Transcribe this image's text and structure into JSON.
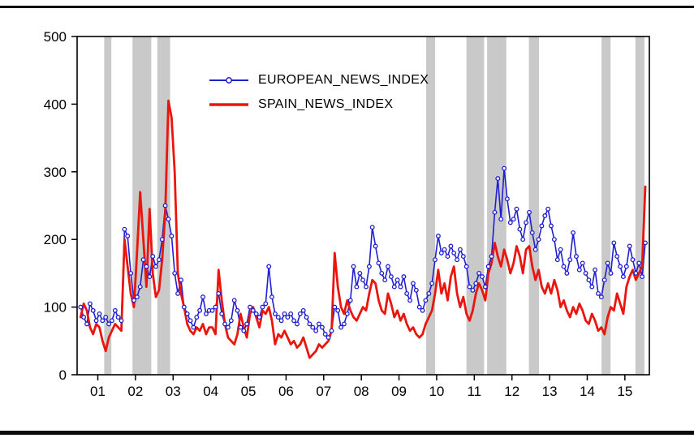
{
  "chart_data": {
    "type": "line",
    "title": "",
    "xlabel": "",
    "ylabel": "",
    "xlim": [
      2000.45,
      2015.65
    ],
    "ylim": [
      0,
      500
    ],
    "grid": false,
    "legend_position": "top-left-inside",
    "band_color": "#c9c9c9",
    "x_start": 2000.542,
    "x_step": 0.083333,
    "xticks": {
      "positions": [
        2001,
        2002,
        2003,
        2004,
        2005,
        2006,
        2007,
        2008,
        2009,
        2010,
        2011,
        2012,
        2013,
        2014,
        2015
      ],
      "labels": [
        "01",
        "02",
        "03",
        "04",
        "05",
        "06",
        "07",
        "08",
        "09",
        "10",
        "11",
        "12",
        "13",
        "14",
        "15"
      ]
    },
    "yticks": [
      0,
      100,
      200,
      300,
      400,
      500
    ],
    "shaded_bands": [
      [
        2001.17,
        2001.36
      ],
      [
        2001.92,
        2002.42
      ],
      [
        2002.58,
        2002.92
      ],
      [
        2009.72,
        2009.96
      ],
      [
        2010.79,
        2011.26
      ],
      [
        2011.34,
        2011.85
      ],
      [
        2012.45,
        2012.72
      ],
      [
        2014.38,
        2014.62
      ],
      [
        2015.28,
        2015.52
      ]
    ],
    "series": [
      {
        "name": "EUROPEAN_NEWS_INDEX",
        "color": "#1f1fd0",
        "line_width": 1.6,
        "marker": "open-circle",
        "values": [
          100,
          85,
          75,
          105,
          95,
          80,
          90,
          80,
          85,
          75,
          80,
          95,
          85,
          80,
          215,
          205,
          150,
          110,
          115,
          130,
          170,
          160,
          145,
          175,
          160,
          170,
          200,
          250,
          230,
          205,
          150,
          120,
          140,
          100,
          90,
          80,
          70,
          85,
          95,
          115,
          90,
          95,
          95,
          100,
          120,
          90,
          75,
          70,
          80,
          110,
          95,
          70,
          65,
          75,
          100,
          95,
          90,
          85,
          100,
          105,
          160,
          115,
          90,
          85,
          80,
          90,
          85,
          90,
          80,
          75,
          90,
          95,
          85,
          75,
          70,
          65,
          75,
          70,
          60,
          55,
          65,
          100,
          95,
          70,
          75,
          90,
          110,
          160,
          130,
          150,
          140,
          130,
          160,
          218,
          190,
          165,
          150,
          140,
          160,
          145,
          130,
          140,
          130,
          145,
          120,
          110,
          135,
          125,
          100,
          95,
          110,
          120,
          135,
          170,
          205,
          180,
          185,
          175,
          190,
          180,
          170,
          185,
          175,
          160,
          130,
          125,
          135,
          150,
          145,
          130,
          160,
          175,
          240,
          290,
          230,
          305,
          260,
          225,
          230,
          245,
          215,
          200,
          225,
          240,
          210,
          185,
          200,
          220,
          235,
          245,
          220,
          200,
          170,
          185,
          160,
          150,
          170,
          210,
          175,
          155,
          165,
          150,
          140,
          130,
          155,
          120,
          115,
          140,
          165,
          150,
          195,
          175,
          160,
          145,
          160,
          190,
          170,
          150,
          165,
          145,
          195
        ]
      },
      {
        "name": "SPAIN_NEWS_INDEX",
        "color": "#ec150d",
        "line_width": 2.8,
        "marker": "none",
        "values": [
          85,
          105,
          95,
          70,
          60,
          75,
          70,
          50,
          35,
          55,
          65,
          75,
          70,
          65,
          200,
          160,
          120,
          100,
          180,
          270,
          200,
          130,
          245,
          150,
          115,
          125,
          170,
          240,
          405,
          380,
          300,
          150,
          120,
          100,
          75,
          65,
          60,
          70,
          65,
          75,
          60,
          70,
          70,
          60,
          155,
          110,
          75,
          55,
          50,
          45,
          60,
          90,
          70,
          55,
          90,
          100,
          85,
          70,
          95,
          90,
          100,
          80,
          45,
          60,
          55,
          65,
          55,
          45,
          50,
          40,
          45,
          55,
          40,
          25,
          30,
          35,
          45,
          40,
          45,
          50,
          65,
          180,
          130,
          100,
          90,
          110,
          95,
          85,
          80,
          90,
          100,
          95,
          120,
          140,
          135,
          110,
          95,
          90,
          120,
          105,
          85,
          95,
          80,
          90,
          75,
          65,
          70,
          60,
          55,
          60,
          75,
          85,
          95,
          120,
          155,
          120,
          135,
          110,
          145,
          160,
          120,
          100,
          115,
          90,
          80,
          95,
          120,
          135,
          125,
          110,
          150,
          165,
          195,
          175,
          160,
          185,
          170,
          150,
          165,
          190,
          175,
          150,
          185,
          190,
          160,
          140,
          155,
          130,
          120,
          135,
          120,
          140,
          125,
          100,
          110,
          95,
          85,
          100,
          90,
          105,
          95,
          80,
          75,
          90,
          80,
          65,
          70,
          60,
          85,
          100,
          95,
          120,
          105,
          90,
          130,
          145,
          155,
          140,
          150,
          160,
          278
        ]
      }
    ]
  }
}
